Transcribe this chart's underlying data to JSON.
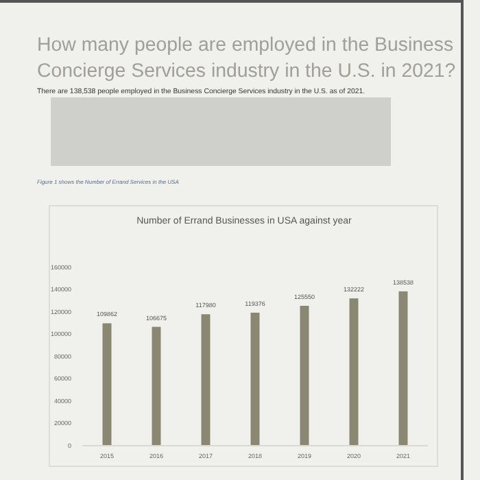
{
  "chart_data": {
    "type": "bar",
    "title": "Number of Errand Businesses in USA against year",
    "annotations": [
      "How many people are employed in the Business Concierge Services industry in the U.S. in 2021?",
      "There are 138,538 people employed in the Business Concierge Services industry in the U.S. as of 2021.",
      "Figure 1 shows the Number of Errand Services in the USA"
    ],
    "categories": [
      "2015",
      "2016",
      "2017",
      "2018",
      "2019",
      "2020",
      "2021"
    ],
    "values": [
      109862,
      106675,
      117980,
      119376,
      125550,
      132222,
      138538
    ],
    "color": "#8a8872",
    "ylim": [
      0,
      160000
    ],
    "yticks": [
      0,
      20000,
      40000,
      60000,
      80000,
      100000,
      120000,
      140000,
      160000
    ],
    "data_labels": true,
    "grid": false
  }
}
